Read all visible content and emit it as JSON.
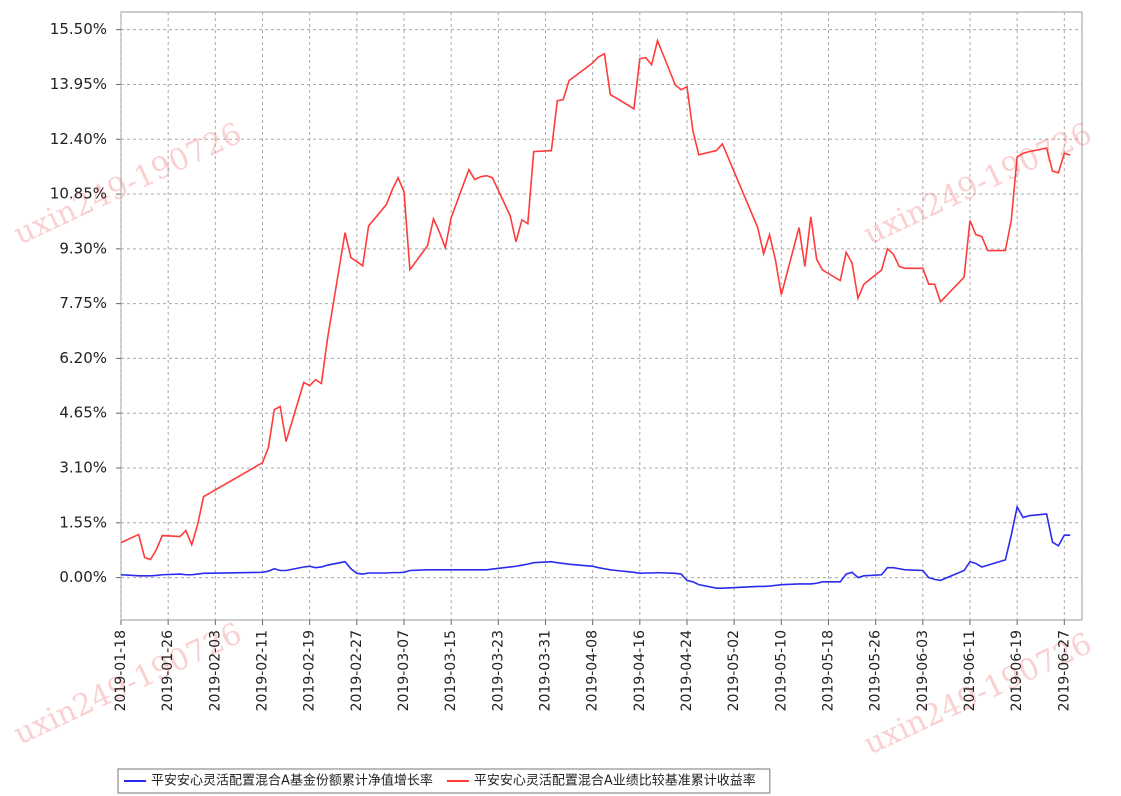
{
  "chart_data": {
    "type": "line",
    "watermark": "uxin249-190726",
    "x": [
      "2019-01-18",
      "2019-01-21",
      "2019-01-22",
      "2019-01-23",
      "2019-01-24",
      "2019-01-25",
      "2019-01-28",
      "2019-01-29",
      "2019-01-30",
      "2019-01-31",
      "2019-02-01",
      "2019-02-11",
      "2019-02-12",
      "2019-02-13",
      "2019-02-14",
      "2019-02-15",
      "2019-02-18",
      "2019-02-19",
      "2019-02-20",
      "2019-02-21",
      "2019-02-22",
      "2019-02-25",
      "2019-02-26",
      "2019-02-27",
      "2019-02-28",
      "2019-03-01",
      "2019-03-04",
      "2019-03-05",
      "2019-03-06",
      "2019-03-07",
      "2019-03-08",
      "2019-03-11",
      "2019-03-12",
      "2019-03-13",
      "2019-03-14",
      "2019-03-15",
      "2019-03-18",
      "2019-03-19",
      "2019-03-20",
      "2019-03-21",
      "2019-03-22",
      "2019-03-25",
      "2019-03-26",
      "2019-03-27",
      "2019-03-28",
      "2019-03-29",
      "2019-04-01",
      "2019-04-02",
      "2019-04-03",
      "2019-04-04",
      "2019-04-08",
      "2019-04-09",
      "2019-04-10",
      "2019-04-11",
      "2019-04-12",
      "2019-04-15",
      "2019-04-16",
      "2019-04-17",
      "2019-04-18",
      "2019-04-19",
      "2019-04-22",
      "2019-04-23",
      "2019-04-24",
      "2019-04-25",
      "2019-04-26",
      "2019-04-29",
      "2019-04-30",
      "2019-05-06",
      "2019-05-07",
      "2019-05-08",
      "2019-05-09",
      "2019-05-10",
      "2019-05-13",
      "2019-05-14",
      "2019-05-15",
      "2019-05-16",
      "2019-05-17",
      "2019-05-20",
      "2019-05-21",
      "2019-05-22",
      "2019-05-23",
      "2019-05-24",
      "2019-05-27",
      "2019-05-28",
      "2019-05-29",
      "2019-05-30",
      "2019-05-31",
      "2019-06-03",
      "2019-06-04",
      "2019-06-05",
      "2019-06-06",
      "2019-06-10",
      "2019-06-11",
      "2019-06-12",
      "2019-06-13",
      "2019-06-14",
      "2019-06-17",
      "2019-06-18",
      "2019-06-19",
      "2019-06-20",
      "2019-06-21",
      "2019-06-24",
      "2019-06-25",
      "2019-06-26",
      "2019-06-27",
      "2019-06-28"
    ],
    "series": [
      {
        "name": "平安安心灵活配置混合A基金份额累计净值增长率",
        "color": "#2b2bf0",
        "values": [
          0.08,
          0.05,
          0.05,
          0.05,
          0.06,
          0.08,
          0.1,
          0.08,
          0.08,
          0.1,
          0.12,
          0.15,
          0.18,
          0.25,
          0.2,
          0.2,
          0.3,
          0.32,
          0.28,
          0.3,
          0.35,
          0.45,
          0.25,
          0.12,
          0.1,
          0.13,
          0.13,
          0.14,
          0.14,
          0.15,
          0.2,
          0.22,
          0.22,
          0.22,
          0.22,
          0.22,
          0.22,
          0.22,
          0.22,
          0.22,
          0.24,
          0.3,
          0.32,
          0.35,
          0.38,
          0.42,
          0.45,
          0.42,
          0.4,
          0.38,
          0.32,
          0.28,
          0.25,
          0.22,
          0.2,
          0.15,
          0.12,
          0.13,
          0.13,
          0.14,
          0.12,
          0.1,
          -0.08,
          -0.12,
          -0.2,
          -0.3,
          -0.3,
          -0.25,
          -0.25,
          -0.24,
          -0.22,
          -0.2,
          -0.18,
          -0.18,
          -0.18,
          -0.16,
          -0.12,
          -0.12,
          0.1,
          0.15,
          0.0,
          0.05,
          0.08,
          0.28,
          0.28,
          0.25,
          0.22,
          0.2,
          0.0,
          -0.05,
          -0.08,
          0.2,
          0.45,
          0.4,
          0.3,
          0.35,
          0.5,
          1.2,
          2.0,
          1.7,
          1.75,
          1.8,
          1.0,
          0.9,
          1.2,
          1.2
        ]
      },
      {
        "name": "平安安心灵活配置混合A业绩比较基准累计收益率",
        "color": "#ff3b3b",
        "values": [
          0.99,
          1.22,
          0.57,
          0.51,
          0.79,
          1.19,
          1.16,
          1.33,
          0.93,
          1.5,
          2.29,
          3.25,
          3.68,
          4.75,
          4.84,
          3.85,
          5.52,
          5.43,
          5.6,
          5.49,
          6.73,
          9.76,
          9.05,
          8.94,
          8.82,
          9.95,
          10.55,
          10.97,
          11.31,
          10.92,
          8.71,
          9.39,
          10.15,
          9.78,
          9.33,
          10.18,
          11.54,
          11.26,
          11.34,
          11.37,
          11.31,
          10.24,
          9.5,
          10.12,
          10.01,
          12.05,
          12.08,
          13.49,
          13.52,
          14.06,
          14.56,
          14.73,
          14.82,
          13.66,
          13.57,
          13.26,
          14.68,
          14.71,
          14.51,
          15.19,
          13.94,
          13.8,
          13.89,
          12.64,
          11.96,
          12.08,
          12.27,
          9.9,
          9.16,
          9.7,
          8.99,
          8.0,
          9.9,
          8.8,
          10.2,
          9.0,
          8.7,
          8.4,
          9.2,
          8.9,
          7.9,
          8.3,
          8.7,
          9.3,
          9.15,
          8.8,
          8.75,
          8.75,
          8.3,
          8.3,
          7.8,
          8.5,
          10.1,
          9.7,
          9.65,
          9.25,
          9.25,
          10.1,
          11.9,
          12.0,
          12.05,
          12.15,
          11.5,
          11.45,
          12.0,
          11.95
        ]
      }
    ],
    "xlim": [
      "2019-01-18",
      "2019-06-30"
    ],
    "xticks": [
      "2019-01-18",
      "2019-01-26",
      "2019-02-03",
      "2019-02-11",
      "2019-02-19",
      "2019-02-27",
      "2019-03-07",
      "2019-03-15",
      "2019-03-23",
      "2019-03-31",
      "2019-04-08",
      "2019-04-16",
      "2019-04-24",
      "2019-05-02",
      "2019-05-10",
      "2019-05-18",
      "2019-05-26",
      "2019-06-03",
      "2019-06-11",
      "2019-06-19",
      "2019-06-27"
    ],
    "ylim": [
      -1.2,
      16.0
    ],
    "yticks": [
      {
        "value": 0,
        "label": "0.00%"
      },
      {
        "value": 1.55,
        "label": "1.55%"
      },
      {
        "value": 3.1,
        "label": "3.10%"
      },
      {
        "value": 4.65,
        "label": "4.65%"
      },
      {
        "value": 6.2,
        "label": "6.20%"
      },
      {
        "value": 7.75,
        "label": "7.75%"
      },
      {
        "value": 9.3,
        "label": "9.30%"
      },
      {
        "value": 10.85,
        "label": "10.85%"
      },
      {
        "value": 12.4,
        "label": "12.40%"
      },
      {
        "value": 13.95,
        "label": "13.95%"
      },
      {
        "value": 15.5,
        "label": "15.50%"
      }
    ],
    "grid": true
  }
}
